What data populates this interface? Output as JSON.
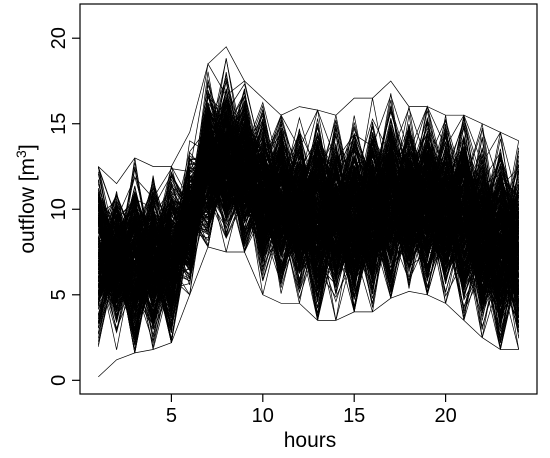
{
  "chart_data": {
    "type": "line",
    "title": "",
    "xlabel": "hours",
    "ylabel": "outflow [m",
    "ylabel_sup": "3",
    "ylabel_suffix": "]",
    "xlim": [
      0,
      25
    ],
    "ylim": [
      -0.8,
      22
    ],
    "x_ticks": [
      5,
      10,
      15,
      20
    ],
    "y_ticks": [
      0,
      5,
      10,
      15,
      20
    ],
    "x": [
      1,
      2,
      3,
      4,
      5,
      6,
      7,
      8,
      9,
      10,
      11,
      12,
      13,
      14,
      15,
      16,
      17,
      18,
      19,
      20,
      21,
      22,
      23,
      24
    ],
    "series_count": 320,
    "line_color": "#000000",
    "envelope": {
      "mean": [
        7.5,
        7.1,
        7.0,
        7.1,
        7.4,
        9.4,
        12.8,
        13.0,
        12.3,
        11.0,
        10.5,
        10.0,
        9.7,
        9.8,
        9.6,
        10.0,
        10.5,
        10.5,
        10.4,
        10.0,
        9.7,
        8.7,
        8.0,
        7.8
      ],
      "min": [
        0.2,
        1.2,
        1.6,
        1.8,
        2.2,
        5.0,
        7.8,
        7.5,
        7.5,
        5.0,
        4.5,
        4.5,
        3.5,
        3.5,
        4.0,
        4.0,
        4.8,
        5.2,
        5.0,
        4.5,
        3.5,
        2.5,
        1.8,
        1.8
      ],
      "max": [
        12.5,
        11.5,
        13.0,
        12.5,
        12.5,
        14.5,
        18.5,
        19.5,
        17.5,
        16.5,
        15.5,
        16.0,
        15.8,
        15.5,
        16.5,
        16.5,
        17.5,
        16.0,
        16.0,
        15.5,
        15.5,
        15.0,
        14.5,
        14.0
      ],
      "alternation": 1.0
    }
  }
}
